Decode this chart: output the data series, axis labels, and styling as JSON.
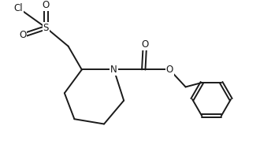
{
  "bg_color": "#ffffff",
  "line_color": "#1a1a1a",
  "line_width": 1.4,
  "font_size": 8.5,
  "fig_width": 3.3,
  "fig_height": 1.88,
  "dpi": 100,
  "xlim": [
    0,
    10
  ],
  "ylim": [
    0,
    5.7
  ]
}
